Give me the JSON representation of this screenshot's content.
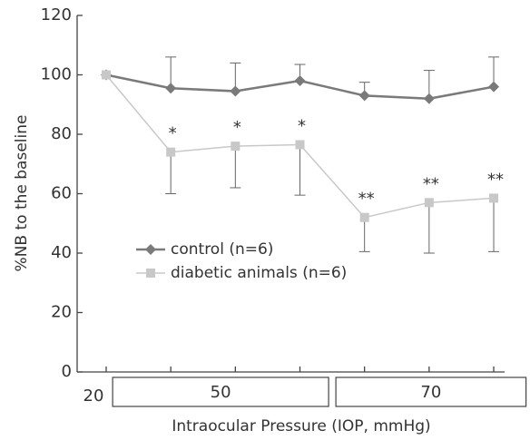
{
  "chart_data": {
    "type": "line",
    "ylabel": "%NB to the baseline",
    "xlabel": "Intraocular Pressure (IOP,  mmHg)",
    "categories": [
      "20",
      "50",
      "50",
      "50",
      "70",
      "70",
      "70"
    ],
    "ylim": [
      0,
      120
    ],
    "yticks": [
      0,
      20,
      40,
      60,
      80,
      100,
      120
    ],
    "legend": "center-left",
    "series": [
      {
        "name": "control (n=6)",
        "color": "#7a7a7a",
        "marker": "diamond",
        "error_direction": "up",
        "values": [
          100,
          95.5,
          94.5,
          98,
          93,
          92,
          96
        ],
        "errors": [
          0,
          10.5,
          9.5,
          5.5,
          4.5,
          9.5,
          10
        ]
      },
      {
        "name": "diabetic animals (n=6)",
        "color": "#c8c8c8",
        "marker": "square",
        "error_direction": "down",
        "values": [
          100,
          74,
          76,
          76.5,
          52,
          57,
          58.5
        ],
        "errors": [
          0,
          14,
          14,
          17,
          11.5,
          17,
          18
        ],
        "annotations": [
          null,
          "*",
          "*",
          "*",
          "**",
          "**",
          "**"
        ]
      }
    ]
  }
}
